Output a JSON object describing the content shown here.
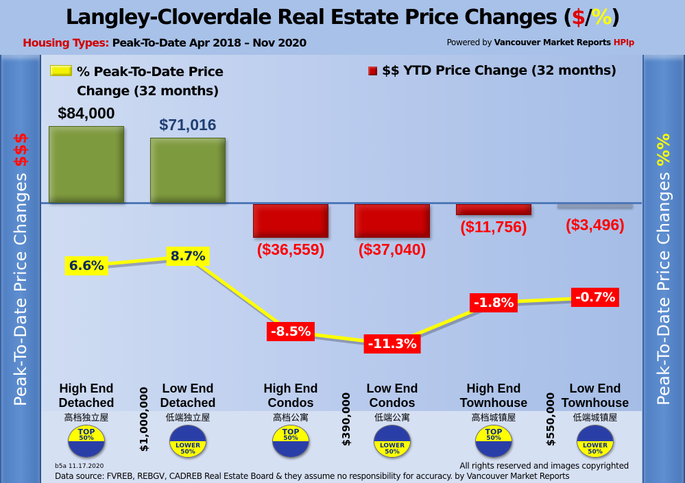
{
  "header": {
    "title_main": "Langley-Cloverdale Real Estate Price Changes (",
    "title_dollar": "$",
    "title_slash": "/",
    "title_pct": "%",
    "title_close": ")",
    "subtitle_prefix": "Housing Types:",
    "subtitle_rest": " Peak-To-Date Apr 2018 – Nov 2020",
    "powered_prefix": "Powered by ",
    "powered_brand": "Vancouver Market Reports ",
    "powered_hpi": "HPIp"
  },
  "sidebars": {
    "left_text": "Peak-To-Date Price Changes ",
    "left_accent": "$$$",
    "right_text": "Peak-To-Date  Price  Changes ",
    "right_accent": "%%"
  },
  "colors": {
    "positive_bar": "#7e9a3e",
    "negative_bar": "#cc0000",
    "line": "#ffff00",
    "positive_label_bg": "#ffff00",
    "negative_label_bg": "#ff0000"
  },
  "chart_data": {
    "type": "bar",
    "title": "Langley-Cloverdale Real Estate Price Changes ($/%)",
    "subtitle": "Housing Types: Peak-To-Date Apr 2018 – Nov 2020",
    "categories": [
      "High End Detached",
      "Low End Detached",
      "High End Condos",
      "Low End Condos",
      "High End Townhouse",
      "Low End Townhouse"
    ],
    "categories_cn": [
      "高档独立屋",
      "低端独立屋",
      "高档公寓",
      "低端公寓",
      "高档城镇屋",
      "低端城镇屋"
    ],
    "tier": [
      "TOP 50%",
      "LOWER 50%",
      "TOP 50%",
      "LOWER 50%",
      "TOP 50%",
      "LOWER 50%"
    ],
    "series": [
      {
        "name": "$$ YTD Price Change (32 months)",
        "type": "bar",
        "values": [
          84000,
          71016,
          -36559,
          -37040,
          -11756,
          -3496
        ],
        "labels": [
          "$84,000",
          "$71,016",
          "($36,559)",
          "($37,040)",
          "($11,756)",
          "($3,496)"
        ]
      },
      {
        "name": "% Peak-To-Date Price Change (32 months)",
        "type": "line",
        "values": [
          6.6,
          8.7,
          -8.5,
          -11.3,
          -1.8,
          -0.7
        ],
        "labels": [
          "6.6%",
          "8.7%",
          "-8.5%",
          "-11.3%",
          "-1.8%",
          "-0.7%"
        ]
      }
    ],
    "thresholds": [
      "$1,000,000",
      "$390,000",
      "$550,000"
    ],
    "xlabel": "",
    "ylabel_left": "Peak-To-Date Price Changes $$$",
    "ylabel_right": "Peak-To-Date Price Changes %%",
    "legend_position": "top",
    "grid": false
  },
  "legend": {
    "pct_line1": "% Peak-To-Date Price",
    "pct_line2": "Change (32 months)",
    "dollar": "$$ YTD Price Change (32 months)"
  },
  "categories_display": [
    {
      "line1": "High End",
      "line2": "Detached"
    },
    {
      "line1": "Low End",
      "line2": "Detached"
    },
    {
      "line1": "High End",
      "line2": "Condos"
    },
    {
      "line1": "Low End",
      "line2": "Condos"
    },
    {
      "line1": "High End",
      "line2": "Townhouse"
    },
    {
      "line1": "Low End",
      "line2": "Townhouse"
    }
  ],
  "badges": [
    {
      "word": "TOP",
      "pct": "50%"
    },
    {
      "word": "LOWER",
      "pct": "50%"
    }
  ],
  "footer": {
    "code": "b5a 11.17.2020",
    "rights": "All rights reserved and  images copyrighted",
    "source": "Data source: FVREB, REBGV, CADREB Real Estate Board & they assume no responsibility for accuracy. by Vancouver Market Reports"
  }
}
